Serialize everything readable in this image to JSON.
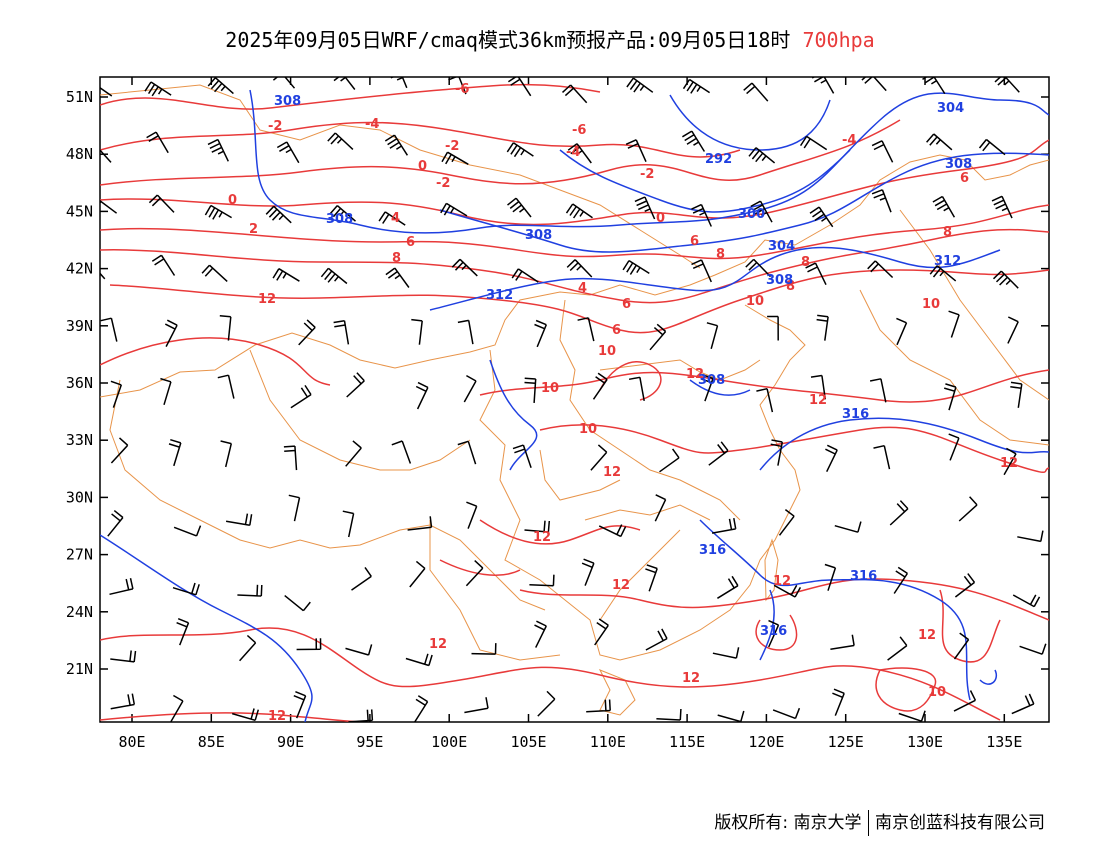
{
  "header": {
    "title": "2025年09月05日WRF/cmaq模式36km预报产品:09月05日18时",
    "level": "700hpa"
  },
  "map": {
    "lat_ticks": [
      "51N",
      "48N",
      "45N",
      "42N",
      "39N",
      "36N",
      "33N",
      "30N",
      "27N",
      "24N",
      "21N"
    ],
    "lon_ticks": [
      "80E",
      "85E",
      "90E",
      "95E",
      "100E",
      "105E",
      "110E",
      "115E",
      "120E",
      "125E",
      "130E",
      "135E"
    ],
    "colors": {
      "temperature": "#e83a3a",
      "height": "#2040e0",
      "border": "#e8944a",
      "wind": "#000000"
    },
    "temperature_labels": [
      "-6",
      "-2",
      "-4",
      "-6",
      "-2",
      "-4",
      "0",
      "-2",
      "-2",
      "0",
      "-4",
      "0",
      "2",
      "4",
      "6",
      "8",
      "6",
      "8",
      "12",
      "4",
      "6",
      "8",
      "10",
      "8",
      "10",
      "6",
      "10",
      "12",
      "10",
      "12",
      "12",
      "12",
      "12",
      "12",
      "12",
      "12",
      "12",
      "12",
      "10",
      "10",
      "12",
      "8",
      "6"
    ],
    "height_labels": [
      "308",
      "304",
      "292",
      "308",
      "308",
      "308",
      "300",
      "304",
      "308",
      "312",
      "312",
      "308",
      "316",
      "316",
      "316",
      "316"
    ]
  },
  "footer": {
    "copyright": "版权所有: 南京大学",
    "company": "南京创蓝科技有限公司"
  }
}
